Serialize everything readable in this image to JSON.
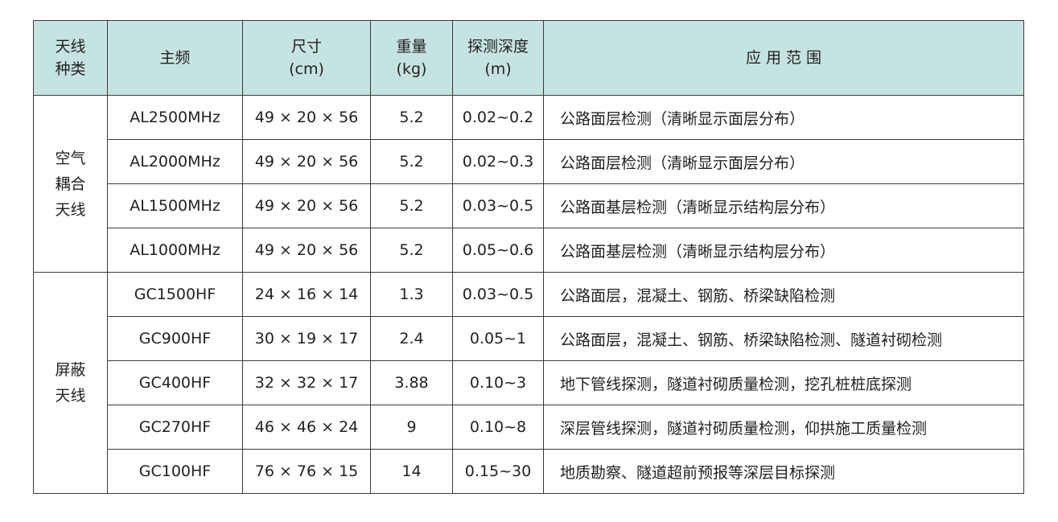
{
  "header_bg": "#c5e3e1",
  "headers": [
    {
      "l1": "天线",
      "l2": "种类"
    },
    {
      "l1": "主频",
      "l2": ""
    },
    {
      "l1": "尺寸",
      "l2": "(cm)"
    },
    {
      "l1": "重量",
      "l2": "(kg)"
    },
    {
      "l1": "探测深度",
      "l2": "(m)"
    },
    {
      "l1": "应 用 范 围",
      "l2": ""
    }
  ],
  "groups": [
    {
      "l1": "空气",
      "l2": "耦合",
      "l3": "天线"
    },
    {
      "l1": "屏蔽",
      "l2": "天线",
      "l3": ""
    }
  ],
  "rows": [
    {
      "freq": "AL2500MHz",
      "size": "49 × 20 × 56",
      "weight": "5.2",
      "depth": "0.02~0.2",
      "app": "公路面层检测（清晰显示面层分布）"
    },
    {
      "freq": "AL2000MHz",
      "size": "49 × 20 × 56",
      "weight": "5.2",
      "depth": "0.02~0.3",
      "app": "公路面层检测（清晰显示面层分布）"
    },
    {
      "freq": "AL1500MHz",
      "size": "49 × 20 × 56",
      "weight": "5.2",
      "depth": "0.03~0.5",
      "app": "公路面基层检测（清晰显示结构层分布）"
    },
    {
      "freq": "AL1000MHz",
      "size": "49 × 20 × 56",
      "weight": "5.2",
      "depth": "0.05~0.6",
      "app": "公路面基层检测（清晰显示结构层分布）"
    },
    {
      "freq": "GC1500HF",
      "size": "24 × 16 × 14",
      "weight": "1.3",
      "depth": "0.03~0.5",
      "app": "公路面层，混凝土、钢筋、桥梁缺陷检测"
    },
    {
      "freq": "GC900HF",
      "size": "30 × 19 × 17",
      "weight": "2.4",
      "depth": "0.05~1",
      "app": "公路面层，混凝土、钢筋、桥梁缺陷检测、隧道衬砌检测"
    },
    {
      "freq": "GC400HF",
      "size": "32 × 32 × 17",
      "weight": "3.88",
      "depth": "0.10~3",
      "app": "地下管线探测，隧道衬砌质量检测，挖孔桩桩底探测"
    },
    {
      "freq": "GC270HF",
      "size": "46 × 46 × 24",
      "weight": "9",
      "depth": "0.10~8",
      "app": "深层管线探测，隧道衬砌质量检测，仰拱施工质量检测"
    },
    {
      "freq": "GC100HF",
      "size": "76 × 76 × 15",
      "weight": "14",
      "depth": "0.15~30",
      "app": "地质勘察、隧道超前预报等深层目标探测"
    }
  ]
}
